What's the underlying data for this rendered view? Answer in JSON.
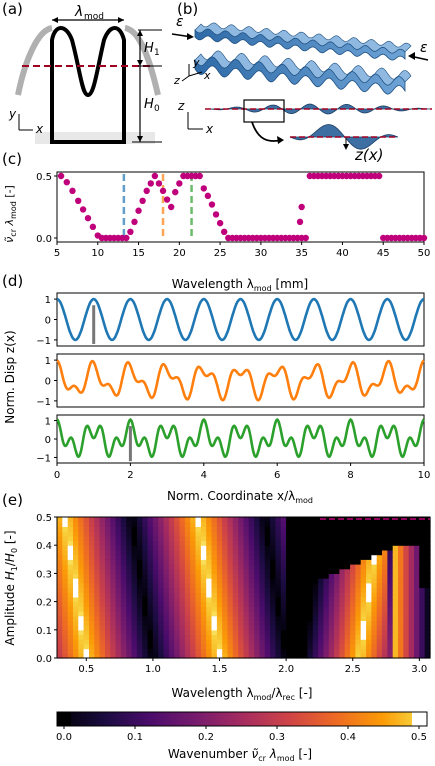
{
  "panels": {
    "a": "(a)",
    "b": "(b)",
    "c": "(c)",
    "d": "(d)",
    "e": "(e)"
  },
  "schematic_a": {
    "lambda_label": "λ",
    "lambda_sub": "mod",
    "h1_label": "H",
    "h1_sub": "1",
    "h0_label": "H",
    "h0_sub": "0",
    "y_label": "y",
    "x_label": "x"
  },
  "schematic_b": {
    "epsilon_left": "ε",
    "epsilon_right": "ε",
    "y_label": "y",
    "z_label": "z",
    "x_label": "x",
    "z2_label": "z",
    "x2_label": "x",
    "zx_label": "z(x)"
  },
  "colors": {
    "blue": "#1f77b4",
    "orange": "#ff7f0e",
    "green": "#2ca02c",
    "magenta": "#c0007a",
    "dash_red": "#a00020"
  },
  "chart_data": [
    {
      "type": "scatter",
      "xlabel": "Wavelength λmod [mm]",
      "xlabel_main": "Wavelength λ",
      "xlabel_sub": "mod",
      "xlabel_unit": " [mm]",
      "ylabel": "ν̃cr λmod [-]",
      "xlim": [
        5,
        50
      ],
      "ylim": [
        0,
        0.5
      ],
      "xticks": [
        "5",
        "10",
        "15",
        "20",
        "25",
        "30",
        "35",
        "40",
        "45",
        "50"
      ],
      "yticks": [
        "0.0",
        "0.5"
      ],
      "vlines": [
        {
          "x": 13.2,
          "color": "#1f77b4"
        },
        {
          "x": 18.0,
          "color": "#ff7f0e"
        },
        {
          "x": 21.5,
          "color": "#2ca02c"
        }
      ],
      "x": [
        5.5,
        6.2,
        6.9,
        7.6,
        8.2,
        8.8,
        9.4,
        10.0,
        10.5,
        11.0,
        11.5,
        12.0,
        12.5,
        13.0,
        13.5,
        14.0,
        14.5,
        15.0,
        15.5,
        16.0,
        16.5,
        17.0,
        17.5,
        18.0,
        18.5,
        19.0,
        19.5,
        20.0,
        20.5,
        21.0,
        21.5,
        22.0,
        22.5,
        23.0,
        23.5,
        24.0,
        24.5,
        25.0,
        25.5,
        26.0,
        26.5,
        27.0,
        27.5,
        28.0,
        28.5,
        29.0,
        29.5,
        30.0,
        30.5,
        31.0,
        31.5,
        32.0,
        32.5,
        33.0,
        33.5,
        34.0,
        34.5,
        35.0,
        35.5,
        36.0,
        36.5,
        37.0,
        37.5,
        38.0,
        38.5,
        39.0,
        39.5,
        40.0,
        40.5,
        41.0,
        41.5,
        42.0,
        42.5,
        43.0,
        43.5,
        44.0,
        44.5,
        45.0,
        45.5,
        46.0,
        46.5,
        47.0,
        47.5,
        48.0,
        48.5,
        49.0,
        49.5,
        50.0
      ],
      "y": [
        0.5,
        0.45,
        0.38,
        0.3,
        0.23,
        0.16,
        0.09,
        0.02,
        0.0,
        0.0,
        0.0,
        0.0,
        0.0,
        0.0,
        0.0,
        0.05,
        0.13,
        0.22,
        0.3,
        0.38,
        0.44,
        0.5,
        0.44,
        0.38,
        0.31,
        0.25,
        0.37,
        0.44,
        0.5,
        0.5,
        0.5,
        0.5,
        0.5,
        0.4,
        0.34,
        0.27,
        0.19,
        0.12,
        0.05,
        0.0,
        0.0,
        0.0,
        0.0,
        0.0,
        0.0,
        0.0,
        0.0,
        0.0,
        0.0,
        0.0,
        0.0,
        0.0,
        0.0,
        0.0,
        0.0,
        0.0,
        0.0,
        0.0,
        0.0,
        0.5,
        0.5,
        0.5,
        0.5,
        0.5,
        0.5,
        0.5,
        0.5,
        0.5,
        0.5,
        0.5,
        0.5,
        0.5,
        0.5,
        0.5,
        0.5,
        0.5,
        0.5,
        0.0,
        0.0,
        0.0,
        0.0,
        0.0,
        0.0,
        0.0,
        0.0,
        0.0,
        0.0,
        0.0
      ],
      "extra_points": [
        {
          "x": 34.8,
          "y": 0.13
        },
        {
          "x": 35.0,
          "y": 0.25
        }
      ]
    },
    {
      "type": "line",
      "ylabel": "Norm. Disp z(x)",
      "xlabel": "Norm. Coordinate x/λmod",
      "xlabel_main": "Norm. Coordinate x/λ",
      "xlabel_sub": "mod",
      "xlim": [
        0,
        10
      ],
      "ylim": [
        -1.3,
        1.3
      ],
      "xticks": [
        "0",
        "2",
        "4",
        "6",
        "8",
        "10"
      ],
      "yticks": [
        "1",
        "0",
        "−1"
      ],
      "series": [
        {
          "color": "#1f77b4",
          "components": [
            {
              "k": 1.0,
              "a": 1.0
            }
          ],
          "marker_x": 1.0
        },
        {
          "color": "#ff7f0e",
          "components": [
            {
              "k": 1.0,
              "a": 0.62
            },
            {
              "k": 2.1,
              "a": 0.35
            }
          ]
        },
        {
          "color": "#2ca02c",
          "components": [
            {
              "k": 1.0,
              "a": 0.55
            },
            {
              "k": 2.5,
              "a": 0.5
            }
          ],
          "marker_x": 2.0
        }
      ]
    },
    {
      "type": "heatmap",
      "xlabel": "Wavelength λmod/λrec [-]",
      "xlabel_main": "Wavelength λ",
      "xlabel_sub1": "mod",
      "xlabel_mid": "/λ",
      "xlabel_sub2": "rec",
      "xlabel_unit": " [-]",
      "ylabel": "Amplitude H1/H0 [-]",
      "xlim": [
        0.28,
        3.08
      ],
      "ylim": [
        0.0,
        0.5
      ],
      "xticks": [
        "0.5",
        "1.0",
        "1.5",
        "2.0",
        "2.5",
        "3.0"
      ],
      "yticks": [
        "0.0",
        "0.1",
        "0.2",
        "0.3",
        "0.4",
        "0.5"
      ],
      "colorbar": {
        "label": "Wavenumber ν̃cr λmod [-]",
        "ticks": [
          "0.0",
          "0.1",
          "0.2",
          "0.3",
          "0.4",
          "0.5"
        ],
        "range": [
          0,
          0.5
        ]
      }
    }
  ]
}
